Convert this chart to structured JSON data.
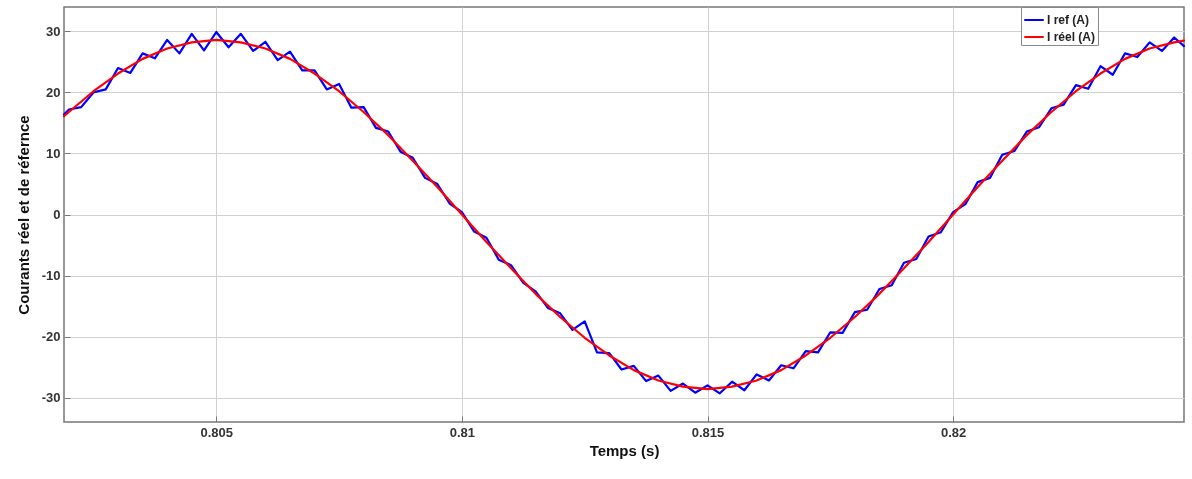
{
  "chart_data": {
    "type": "line",
    "xlabel": "Temps (s)",
    "ylabel": "Courants réel et de réfernce",
    "xlim": [
      0.8019,
      0.8247
    ],
    "ylim": [
      -34,
      34
    ],
    "xticks": [
      0.805,
      0.81,
      0.815,
      0.82
    ],
    "yticks": [
      -30,
      -20,
      -10,
      0,
      10,
      20,
      30
    ],
    "grid": true,
    "legend": "top right",
    "series": [
      {
        "name": "I ref (A)",
        "color": "#0000ff",
        "x": [
          0.8019,
          0.802,
          0.80225,
          0.8025,
          0.80275,
          0.803,
          0.80325,
          0.8035,
          0.80375,
          0.804,
          0.80425,
          0.8045,
          0.80475,
          0.805,
          0.80525,
          0.8055,
          0.80575,
          0.806,
          0.80625,
          0.8065,
          0.80675,
          0.807,
          0.80725,
          0.8075,
          0.80775,
          0.808,
          0.80825,
          0.8085,
          0.80875,
          0.809,
          0.80925,
          0.8095,
          0.80975,
          0.81,
          0.81025,
          0.8105,
          0.81075,
          0.811,
          0.81125,
          0.8115,
          0.81175,
          0.812,
          0.81225,
          0.8125,
          0.81275,
          0.813,
          0.81325,
          0.8135,
          0.81375,
          0.814,
          0.81425,
          0.8145,
          0.81475,
          0.815,
          0.81525,
          0.8155,
          0.81575,
          0.816,
          0.81625,
          0.8165,
          0.81675,
          0.817,
          0.81725,
          0.8175,
          0.81775,
          0.818,
          0.81825,
          0.8185,
          0.81875,
          0.819,
          0.81925,
          0.8195,
          0.81975,
          0.82,
          0.82025,
          0.8205,
          0.82075,
          0.821,
          0.82125,
          0.8215,
          0.82175,
          0.822,
          0.82225,
          0.8225,
          0.82275,
          0.823,
          0.82325,
          0.8235,
          0.82375,
          0.824,
          0.82425,
          0.8245,
          0.8247
        ],
        "values": [
          16.4,
          17.2,
          17.6,
          20.0,
          20.5,
          24.0,
          23.2,
          26.4,
          25.6,
          28.6,
          26.4,
          29.6,
          26.9,
          29.9,
          27.4,
          29.6,
          26.8,
          28.3,
          25.3,
          26.7,
          23.6,
          23.6,
          20.5,
          21.4,
          17.5,
          17.6,
          14.2,
          13.6,
          10.3,
          9.3,
          6.0,
          5.0,
          1.8,
          0.4,
          -2.8,
          -3.8,
          -7.4,
          -8.3,
          -11.2,
          -12.6,
          -15.3,
          -16.2,
          -18.9,
          -17.5,
          -22.6,
          -22.7,
          -25.4,
          -24.8,
          -27.3,
          -26.4,
          -28.9,
          -27.7,
          -29.2,
          -28.0,
          -29.3,
          -27.4,
          -28.8,
          -26.2,
          -27.2,
          -24.7,
          -25.2,
          -22.4,
          -22.6,
          -19.3,
          -19.4,
          -16.0,
          -15.6,
          -12.2,
          -11.6,
          -7.9,
          -7.3,
          -3.6,
          -2.9,
          0.4,
          1.7,
          5.3,
          6.0,
          9.8,
          10.4,
          13.6,
          14.3,
          17.4,
          18.0,
          21.2,
          20.6,
          24.3,
          22.9,
          26.4,
          25.8,
          28.2,
          26.8,
          29.0,
          27.6
        ]
      },
      {
        "name": "I réel (A)",
        "color": "#ff0000",
        "x": [
          0.8019,
          0.802,
          0.8025,
          0.803,
          0.8035,
          0.804,
          0.8045,
          0.805,
          0.8055,
          0.806,
          0.8065,
          0.807,
          0.8075,
          0.808,
          0.8085,
          0.809,
          0.8095,
          0.81,
          0.8105,
          0.811,
          0.8115,
          0.812,
          0.8125,
          0.813,
          0.8135,
          0.814,
          0.8145,
          0.815,
          0.8155,
          0.816,
          0.8165,
          0.817,
          0.8175,
          0.818,
          0.8185,
          0.819,
          0.8195,
          0.82,
          0.8205,
          0.821,
          0.8215,
          0.822,
          0.8225,
          0.823,
          0.8235,
          0.824,
          0.8245,
          0.8247
        ],
        "values": [
          16.1,
          16.8,
          20.2,
          23.1,
          25.5,
          27.2,
          28.2,
          28.6,
          28.2,
          27.2,
          25.5,
          23.1,
          20.2,
          16.8,
          13.0,
          8.8,
          4.5,
          0,
          -4.5,
          -8.8,
          -13.0,
          -16.8,
          -20.2,
          -23.1,
          -25.5,
          -27.2,
          -28.2,
          -28.6,
          -28.2,
          -27.2,
          -25.5,
          -23.1,
          -20.2,
          -16.8,
          -13.0,
          -8.8,
          -4.5,
          0,
          4.5,
          8.8,
          13.0,
          16.8,
          20.2,
          23.1,
          25.5,
          27.2,
          28.2,
          28.5
        ]
      }
    ]
  }
}
